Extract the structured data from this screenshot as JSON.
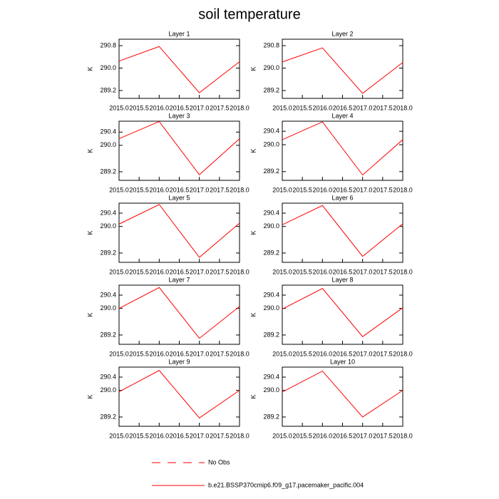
{
  "title": "soil temperature",
  "legend": [
    {
      "label": "No Obs",
      "color": "#ff0000",
      "dash": true
    },
    {
      "label": "b.e21.BSSP370cmip6.f09_g17.pacemaker_pacific.004",
      "color": "#ff0000",
      "dash": false
    }
  ],
  "chart_data": [
    {
      "type": "line",
      "title": "Layer 1",
      "ylabel": "K",
      "x": [
        2015,
        2016,
        2017,
        2018
      ],
      "xlim": [
        2015,
        2018
      ],
      "xticks": [
        {
          "value": 2015,
          "label": "2015.0"
        },
        {
          "value": 2015.5,
          "label": "2015.5"
        },
        {
          "value": 2016,
          "label": "2016.0"
        },
        {
          "value": 2016.5,
          "label": "2016.5"
        },
        {
          "value": 2017,
          "label": "2017.0"
        },
        {
          "value": 2017.5,
          "label": "2017.5"
        },
        {
          "value": 2018,
          "label": "2018.0"
        }
      ],
      "ylim": [
        288.92,
        291.03
      ],
      "yticks": [
        289.2,
        {
          "value": 290,
          "label": "290.0"
        },
        290.8
      ],
      "series": [
        {
          "color": "#ff0000",
          "values": [
            290.25,
            290.77,
            289.12,
            290.23
          ]
        }
      ]
    },
    {
      "type": "line",
      "title": "Layer 2",
      "ylabel": "K",
      "x": [
        2015,
        2016,
        2017,
        2018
      ],
      "xlim": [
        2015,
        2018
      ],
      "xticks": [
        {
          "value": 2015,
          "label": "2015.0"
        },
        {
          "value": 2015.5,
          "label": "2015.5"
        },
        {
          "value": 2016,
          "label": "2016.0"
        },
        {
          "value": 2016.5,
          "label": "2016.5"
        },
        {
          "value": 2017,
          "label": "2017.0"
        },
        {
          "value": 2017.5,
          "label": "2017.5"
        },
        {
          "value": 2018,
          "label": "2018.0"
        }
      ],
      "ylim": [
        288.92,
        291.03
      ],
      "yticks": [
        289.2,
        {
          "value": 290,
          "label": "290.0"
        },
        290.8
      ],
      "series": [
        {
          "color": "#ff0000",
          "values": [
            290.22,
            290.72,
            289.1,
            290.2
          ]
        }
      ]
    },
    {
      "type": "line",
      "title": "Layer 3",
      "ylabel": "K",
      "x": [
        2015,
        2016,
        2017,
        2018
      ],
      "xlim": [
        2015,
        2018
      ],
      "xticks": [
        {
          "value": 2015,
          "label": "2015.0"
        },
        {
          "value": 2015.5,
          "label": "2015.5"
        },
        {
          "value": 2016,
          "label": "2016.0"
        },
        {
          "value": 2016.5,
          "label": "2016.5"
        },
        {
          "value": 2017,
          "label": "2017.0"
        },
        {
          "value": 2017.5,
          "label": "2017.5"
        },
        {
          "value": 2018,
          "label": "2018.0"
        }
      ],
      "ylim": [
        288.94,
        290.73
      ],
      "yticks": [
        289.2,
        {
          "value": 290,
          "label": "290.0"
        },
        290.4
      ],
      "series": [
        {
          "color": "#ff0000",
          "values": [
            290.2,
            290.72,
            289.11,
            290.2
          ]
        }
      ]
    },
    {
      "type": "line",
      "title": "Layer 4",
      "ylabel": "K",
      "x": [
        2015,
        2016,
        2017,
        2018
      ],
      "xlim": [
        2015,
        2018
      ],
      "xticks": [
        {
          "value": 2015,
          "label": "2015.0"
        },
        {
          "value": 2015.5,
          "label": "2015.5"
        },
        {
          "value": 2016,
          "label": "2016.0"
        },
        {
          "value": 2016.5,
          "label": "2016.5"
        },
        {
          "value": 2017,
          "label": "2017.0"
        },
        {
          "value": 2017.5,
          "label": "2017.5"
        },
        {
          "value": 2018,
          "label": "2018.0"
        }
      ],
      "ylim": [
        288.94,
        290.7
      ],
      "yticks": [
        289.2,
        {
          "value": 290,
          "label": "290.0"
        },
        290.4
      ],
      "series": [
        {
          "color": "#ff0000",
          "values": [
            290.15,
            290.68,
            289.1,
            290.15
          ]
        }
      ]
    },
    {
      "type": "line",
      "title": "Layer 5",
      "ylabel": "K",
      "x": [
        2015,
        2016,
        2017,
        2018
      ],
      "xlim": [
        2015,
        2018
      ],
      "xticks": [
        {
          "value": 2015,
          "label": "2015.0"
        },
        {
          "value": 2015.5,
          "label": "2015.5"
        },
        {
          "value": 2016,
          "label": "2016.0"
        },
        {
          "value": 2016.5,
          "label": "2016.5"
        },
        {
          "value": 2017,
          "label": "2017.0"
        },
        {
          "value": 2017.5,
          "label": "2017.5"
        },
        {
          "value": 2018,
          "label": "2018.0"
        }
      ],
      "ylim": [
        288.92,
        290.7
      ],
      "yticks": [
        289.2,
        {
          "value": 290,
          "label": "290.0"
        },
        290.4
      ],
      "series": [
        {
          "color": "#ff0000",
          "values": [
            290.07,
            290.66,
            289.07,
            290.1
          ]
        }
      ]
    },
    {
      "type": "line",
      "title": "Layer 6",
      "ylabel": "K",
      "x": [
        2015,
        2016,
        2017,
        2018
      ],
      "xlim": [
        2015,
        2018
      ],
      "xticks": [
        {
          "value": 2015,
          "label": "2015.0"
        },
        {
          "value": 2015.5,
          "label": "2015.5"
        },
        {
          "value": 2016,
          "label": "2016.0"
        },
        {
          "value": 2016.5,
          "label": "2016.5"
        },
        {
          "value": 2017,
          "label": "2017.0"
        },
        {
          "value": 2017.5,
          "label": "2017.5"
        },
        {
          "value": 2018,
          "label": "2018.0"
        }
      ],
      "ylim": [
        288.92,
        290.7
      ],
      "yticks": [
        289.2,
        {
          "value": 290,
          "label": "290.0"
        },
        290.4
      ],
      "series": [
        {
          "color": "#ff0000",
          "values": [
            290.05,
            290.63,
            289.1,
            290.08
          ]
        }
      ]
    },
    {
      "type": "line",
      "title": "Layer 7",
      "ylabel": "K",
      "x": [
        2015,
        2016,
        2017,
        2018
      ],
      "xlim": [
        2015,
        2018
      ],
      "xticks": [
        {
          "value": 2015,
          "label": "2015.0"
        },
        {
          "value": 2015.5,
          "label": "2015.5"
        },
        {
          "value": 2016,
          "label": "2016.0"
        },
        {
          "value": 2016.5,
          "label": "2016.5"
        },
        {
          "value": 2017,
          "label": "2017.0"
        },
        {
          "value": 2017.5,
          "label": "2017.5"
        },
        {
          "value": 2018,
          "label": "2018.0"
        }
      ],
      "ylim": [
        288.92,
        290.7
      ],
      "yticks": [
        289.2,
        {
          "value": 290,
          "label": "290.0"
        },
        290.4
      ],
      "series": [
        {
          "color": "#ff0000",
          "values": [
            290.0,
            290.63,
            289.1,
            290.06
          ]
        }
      ]
    },
    {
      "type": "line",
      "title": "Layer 8",
      "ylabel": "K",
      "x": [
        2015,
        2016,
        2017,
        2018
      ],
      "xlim": [
        2015,
        2018
      ],
      "xticks": [
        {
          "value": 2015,
          "label": "2015.0"
        },
        {
          "value": 2015.5,
          "label": "2015.5"
        },
        {
          "value": 2016,
          "label": "2016.0"
        },
        {
          "value": 2016.5,
          "label": "2016.5"
        },
        {
          "value": 2017,
          "label": "2017.0"
        },
        {
          "value": 2017.5,
          "label": "2017.5"
        },
        {
          "value": 2018,
          "label": "2018.0"
        }
      ],
      "ylim": [
        288.92,
        290.7
      ],
      "yticks": [
        289.2,
        {
          "value": 290,
          "label": "290.0"
        },
        290.4
      ],
      "series": [
        {
          "color": "#ff0000",
          "values": [
            289.98,
            290.6,
            289.15,
            290.02
          ]
        }
      ]
    },
    {
      "type": "line",
      "title": "Layer 9",
      "ylabel": "K",
      "x": [
        2015,
        2016,
        2017,
        2018
      ],
      "xlim": [
        2015,
        2018
      ],
      "xticks": [
        {
          "value": 2015,
          "label": "2015.0"
        },
        {
          "value": 2015.5,
          "label": "2015.5"
        },
        {
          "value": 2016,
          "label": "2016.0"
        },
        {
          "value": 2016.5,
          "label": "2016.5"
        },
        {
          "value": 2017,
          "label": "2017.0"
        },
        {
          "value": 2017.5,
          "label": "2017.5"
        },
        {
          "value": 2018,
          "label": "2018.0"
        }
      ],
      "ylim": [
        288.92,
        290.7
      ],
      "yticks": [
        289.2,
        {
          "value": 290,
          "label": "290.0"
        },
        290.4
      ],
      "series": [
        {
          "color": "#ff0000",
          "values": [
            289.96,
            290.6,
            289.17,
            290.0
          ]
        }
      ]
    },
    {
      "type": "line",
      "title": "Layer 10",
      "ylabel": "K",
      "x": [
        2015,
        2016,
        2017,
        2018
      ],
      "xlim": [
        2015,
        2018
      ],
      "xticks": [
        {
          "value": 2015,
          "label": "2015.0"
        },
        {
          "value": 2015.5,
          "label": "2015.5"
        },
        {
          "value": 2016,
          "label": "2016.0"
        },
        {
          "value": 2016.5,
          "label": "2016.5"
        },
        {
          "value": 2017,
          "label": "2017.0"
        },
        {
          "value": 2017.5,
          "label": "2017.5"
        },
        {
          "value": 2018,
          "label": "2018.0"
        }
      ],
      "ylim": [
        288.92,
        290.7
      ],
      "yticks": [
        289.2,
        {
          "value": 290,
          "label": "290.0"
        },
        290.4
      ],
      "series": [
        {
          "color": "#ff0000",
          "values": [
            289.95,
            290.58,
            289.2,
            290.0
          ]
        }
      ]
    }
  ]
}
